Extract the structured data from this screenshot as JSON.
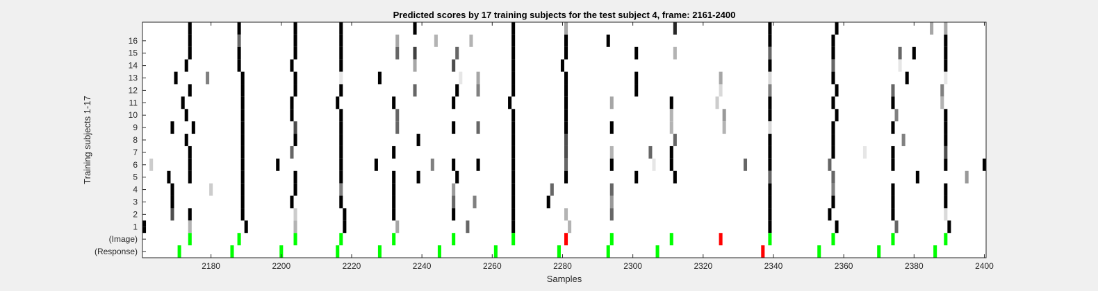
{
  "chart_data": {
    "type": "heatmap",
    "title": "Predicted scores by 17 training subjects for the test subject 4, frame: 2161-2400",
    "xlabel": "Samples",
    "ylabel": "Training subjects 1-17",
    "xlim": [
      2161,
      2400
    ],
    "x_ticks": [
      "2180",
      "2200",
      "2220",
      "2240",
      "2260",
      "2280",
      "2300",
      "2320",
      "2340",
      "2360",
      "2380",
      "2400"
    ],
    "x_tick_values": [
      2180,
      2200,
      2220,
      2240,
      2260,
      2280,
      2300,
      2320,
      2340,
      2360,
      2380,
      2400
    ],
    "y_tick_labels": [
      "16",
      "15",
      "14",
      "13",
      "12",
      "11",
      "10",
      "9",
      "8",
      "7",
      "6",
      "5",
      "4",
      "3",
      "2",
      "1",
      "(Image)",
      "(Response)"
    ],
    "rows_top_to_bottom": [
      "17",
      "16",
      "15",
      "14",
      "13",
      "12",
      "11",
      "10",
      "9",
      "8",
      "7",
      "6",
      "5",
      "4",
      "3",
      "2",
      "1",
      "(Image)",
      "(Response)"
    ],
    "grid": false,
    "colors": {
      "background": "#f0f0f0",
      "axes_background": "#ffffff",
      "axes_edge": "#262626",
      "correct": "#00ff00",
      "incorrect": "#ff0000"
    },
    "value_encoding": "grayscale: 1 = black, 0 = white",
    "subject_cells": {
      "17": [
        [
          2174,
          1
        ],
        [
          2188,
          1
        ],
        [
          2204,
          1
        ],
        [
          2217,
          1
        ],
        [
          2238,
          1
        ],
        [
          2266,
          1
        ],
        [
          2281,
          0.35
        ],
        [
          2312,
          0.85
        ],
        [
          2339,
          1
        ],
        [
          2358,
          1
        ],
        [
          2385,
          0.35
        ],
        [
          2389,
          0.35
        ]
      ],
      "16": [
        [
          2174,
          1
        ],
        [
          2188,
          0.6
        ],
        [
          2204,
          1
        ],
        [
          2217,
          1
        ],
        [
          2233,
          0.35
        ],
        [
          2266,
          1
        ],
        [
          2281,
          1
        ],
        [
          2293,
          1
        ],
        [
          2339,
          1
        ],
        [
          2357,
          1
        ],
        [
          2389,
          1
        ],
        [
          2244,
          0.3
        ],
        [
          2254,
          0.3
        ]
      ],
      "15": [
        [
          2174,
          1
        ],
        [
          2188,
          1
        ],
        [
          2204,
          1
        ],
        [
          2217,
          1
        ],
        [
          2233,
          0.6
        ],
        [
          2238,
          0.75
        ],
        [
          2250,
          0.6
        ],
        [
          2266,
          1
        ],
        [
          2281,
          1
        ],
        [
          2301,
          1
        ],
        [
          2312,
          0.3
        ],
        [
          2339,
          0.6
        ],
        [
          2357,
          1
        ],
        [
          2376,
          0.6
        ],
        [
          2380,
          1
        ],
        [
          2389,
          1
        ]
      ],
      "14": [
        [
          2173,
          1
        ],
        [
          2188,
          1
        ],
        [
          2203,
          1
        ],
        [
          2217,
          1
        ],
        [
          2238,
          0.35
        ],
        [
          2249,
          0.7
        ],
        [
          2266,
          1
        ],
        [
          2280,
          1
        ],
        [
          2339,
          1
        ],
        [
          2357,
          0.6
        ],
        [
          2376,
          0.1
        ],
        [
          2389,
          1
        ]
      ],
      "13": [
        [
          2170,
          1
        ],
        [
          2179,
          0.5
        ],
        [
          2189,
          1
        ],
        [
          2204,
          1
        ],
        [
          2217,
          0.1
        ],
        [
          2228,
          1
        ],
        [
          2251,
          0.1
        ],
        [
          2256,
          0.35
        ],
        [
          2266,
          1
        ],
        [
          2281,
          1
        ],
        [
          2301,
          1
        ],
        [
          2325,
          0.35
        ],
        [
          2339,
          0.15
        ],
        [
          2357,
          1
        ],
        [
          2378,
          1
        ],
        [
          2389,
          0.1
        ]
      ],
      "12": [
        [
          2174,
          1
        ],
        [
          2189,
          1
        ],
        [
          2204,
          1
        ],
        [
          2217,
          1
        ],
        [
          2238,
          0.6
        ],
        [
          2250,
          1
        ],
        [
          2256,
          0.5
        ],
        [
          2266,
          1
        ],
        [
          2281,
          1
        ],
        [
          2301,
          1
        ],
        [
          2325,
          0.15
        ],
        [
          2339,
          0.5
        ],
        [
          2358,
          1
        ],
        [
          2374,
          0.6
        ],
        [
          2388,
          0.5
        ]
      ],
      "11": [
        [
          2172,
          1
        ],
        [
          2189,
          1
        ],
        [
          2203,
          1
        ],
        [
          2216,
          1
        ],
        [
          2232,
          1
        ],
        [
          2249,
          1
        ],
        [
          2265,
          1
        ],
        [
          2281,
          1
        ],
        [
          2294,
          0.35
        ],
        [
          2311,
          1
        ],
        [
          2324,
          0.2
        ],
        [
          2339,
          1
        ],
        [
          2357,
          1
        ],
        [
          2374,
          1
        ],
        [
          2388,
          0.3
        ]
      ],
      "10": [
        [
          2173,
          1
        ],
        [
          2189,
          1
        ],
        [
          2203,
          1
        ],
        [
          2217,
          1
        ],
        [
          2233,
          0.6
        ],
        [
          2266,
          1
        ],
        [
          2281,
          1
        ],
        [
          2311,
          0.3
        ],
        [
          2326,
          0.4
        ],
        [
          2339,
          1
        ],
        [
          2358,
          1
        ],
        [
          2375,
          0.5
        ],
        [
          2389,
          1
        ]
      ],
      "9": [
        [
          2169,
          1
        ],
        [
          2175,
          1
        ],
        [
          2189,
          1
        ],
        [
          2204,
          0.7
        ],
        [
          2217,
          1
        ],
        [
          2233,
          0.6
        ],
        [
          2249,
          1
        ],
        [
          2256,
          0.6
        ],
        [
          2266,
          1
        ],
        [
          2281,
          1
        ],
        [
          2294,
          1
        ],
        [
          2311,
          0.3
        ],
        [
          2326,
          0.3
        ],
        [
          2339,
          0.15
        ],
        [
          2357,
          1
        ],
        [
          2374,
          1
        ],
        [
          2389,
          1
        ]
      ],
      "8": [
        [
          2173,
          1
        ],
        [
          2189,
          1
        ],
        [
          2204,
          1
        ],
        [
          2217,
          1
        ],
        [
          2239,
          1
        ],
        [
          2266,
          1
        ],
        [
          2281,
          0.7
        ],
        [
          2312,
          0.6
        ],
        [
          2339,
          1
        ],
        [
          2357,
          1
        ],
        [
          2377,
          0.5
        ],
        [
          2389,
          1
        ]
      ],
      "7": [
        [
          2174,
          1
        ],
        [
          2189,
          1
        ],
        [
          2203,
          0.6
        ],
        [
          2217,
          1
        ],
        [
          2232,
          1
        ],
        [
          2266,
          1
        ],
        [
          2281,
          0.7
        ],
        [
          2294,
          0.3
        ],
        [
          2305,
          0.6
        ],
        [
          2311,
          1
        ],
        [
          2339,
          1
        ],
        [
          2357,
          1
        ],
        [
          2366,
          0.1
        ],
        [
          2374,
          1
        ],
        [
          2389,
          0.7
        ]
      ],
      "6": [
        [
          2163,
          0.2
        ],
        [
          2174,
          1
        ],
        [
          2189,
          1
        ],
        [
          2199,
          1
        ],
        [
          2217,
          1
        ],
        [
          2227,
          1
        ],
        [
          2243,
          0.5
        ],
        [
          2249,
          1
        ],
        [
          2256,
          1
        ],
        [
          2266,
          1
        ],
        [
          2281,
          0.6
        ],
        [
          2294,
          1
        ],
        [
          2306,
          0.1
        ],
        [
          2311,
          1
        ],
        [
          2332,
          0.6
        ],
        [
          2339,
          1
        ],
        [
          2356,
          0.6
        ],
        [
          2374,
          1
        ],
        [
          2389,
          1
        ],
        [
          2400,
          1
        ]
      ],
      "5": [
        [
          2168,
          1
        ],
        [
          2174,
          1
        ],
        [
          2189,
          1
        ],
        [
          2204,
          1
        ],
        [
          2217,
          1
        ],
        [
          2232,
          1
        ],
        [
          2239,
          1
        ],
        [
          2250,
          1
        ],
        [
          2266,
          1
        ],
        [
          2281,
          1
        ],
        [
          2301,
          1
        ],
        [
          2312,
          1
        ],
        [
          2339,
          0.6
        ],
        [
          2357,
          0.6
        ],
        [
          2381,
          1
        ],
        [
          2395,
          0.4
        ]
      ],
      "4": [
        [
          2169,
          1
        ],
        [
          2180,
          0.2
        ],
        [
          2189,
          1
        ],
        [
          2204,
          1
        ],
        [
          2217,
          0.5
        ],
        [
          2232,
          1
        ],
        [
          2249,
          0.4
        ],
        [
          2266,
          1
        ],
        [
          2277,
          0.6
        ],
        [
          2294,
          0.6
        ],
        [
          2339,
          1
        ],
        [
          2357,
          0.5
        ],
        [
          2374,
          1
        ],
        [
          2389,
          1
        ]
      ],
      "3": [
        [
          2169,
          1
        ],
        [
          2189,
          1
        ],
        [
          2203,
          1
        ],
        [
          2217,
          1
        ],
        [
          2232,
          1
        ],
        [
          2249,
          0.6
        ],
        [
          2255,
          0.5
        ],
        [
          2266,
          1
        ],
        [
          2276,
          1
        ],
        [
          2294,
          0.4
        ],
        [
          2339,
          1
        ],
        [
          2357,
          1
        ],
        [
          2374,
          1
        ],
        [
          2389,
          1
        ]
      ],
      "2": [
        [
          2169,
          0.7
        ],
        [
          2174,
          1
        ],
        [
          2189,
          1
        ],
        [
          2204,
          0.2
        ],
        [
          2218,
          1
        ],
        [
          2232,
          1
        ],
        [
          2249,
          1
        ],
        [
          2266,
          1
        ],
        [
          2281,
          0.3
        ],
        [
          2294,
          0.6
        ],
        [
          2339,
          1
        ],
        [
          2356,
          1
        ],
        [
          2374,
          1
        ],
        [
          2389,
          0.15
        ]
      ],
      "1": [
        [
          2161,
          1
        ],
        [
          2174,
          0.3
        ],
        [
          2190,
          1
        ],
        [
          2204,
          0.3
        ],
        [
          2218,
          1
        ],
        [
          2233,
          0.35
        ],
        [
          2253,
          0.6
        ],
        [
          2266,
          1
        ],
        [
          2282,
          0.3
        ],
        [
          2339,
          1
        ],
        [
          2358,
          1
        ],
        [
          2375,
          0.6
        ],
        [
          2390,
          1
        ]
      ]
    },
    "image_markers": [
      {
        "x": 2174,
        "status": "correct"
      },
      {
        "x": 2188,
        "status": "correct"
      },
      {
        "x": 2204,
        "status": "correct"
      },
      {
        "x": 2217,
        "status": "correct"
      },
      {
        "x": 2232,
        "status": "correct"
      },
      {
        "x": 2249,
        "status": "correct"
      },
      {
        "x": 2266,
        "status": "correct"
      },
      {
        "x": 2281,
        "status": "incorrect"
      },
      {
        "x": 2294,
        "status": "correct"
      },
      {
        "x": 2311,
        "status": "correct"
      },
      {
        "x": 2325,
        "status": "incorrect"
      },
      {
        "x": 2339,
        "status": "correct"
      },
      {
        "x": 2357,
        "status": "correct"
      },
      {
        "x": 2374,
        "status": "correct"
      },
      {
        "x": 2389,
        "status": "correct"
      }
    ],
    "response_markers": [
      {
        "x": 2171,
        "status": "correct"
      },
      {
        "x": 2186,
        "status": "correct"
      },
      {
        "x": 2200,
        "status": "correct"
      },
      {
        "x": 2216,
        "status": "correct"
      },
      {
        "x": 2228,
        "status": "correct"
      },
      {
        "x": 2245,
        "status": "correct"
      },
      {
        "x": 2261,
        "status": "correct"
      },
      {
        "x": 2279,
        "status": "correct"
      },
      {
        "x": 2293,
        "status": "correct"
      },
      {
        "x": 2307,
        "status": "correct"
      },
      {
        "x": 2337,
        "status": "incorrect"
      },
      {
        "x": 2353,
        "status": "correct"
      },
      {
        "x": 2370,
        "status": "correct"
      },
      {
        "x": 2386,
        "status": "correct"
      }
    ]
  }
}
